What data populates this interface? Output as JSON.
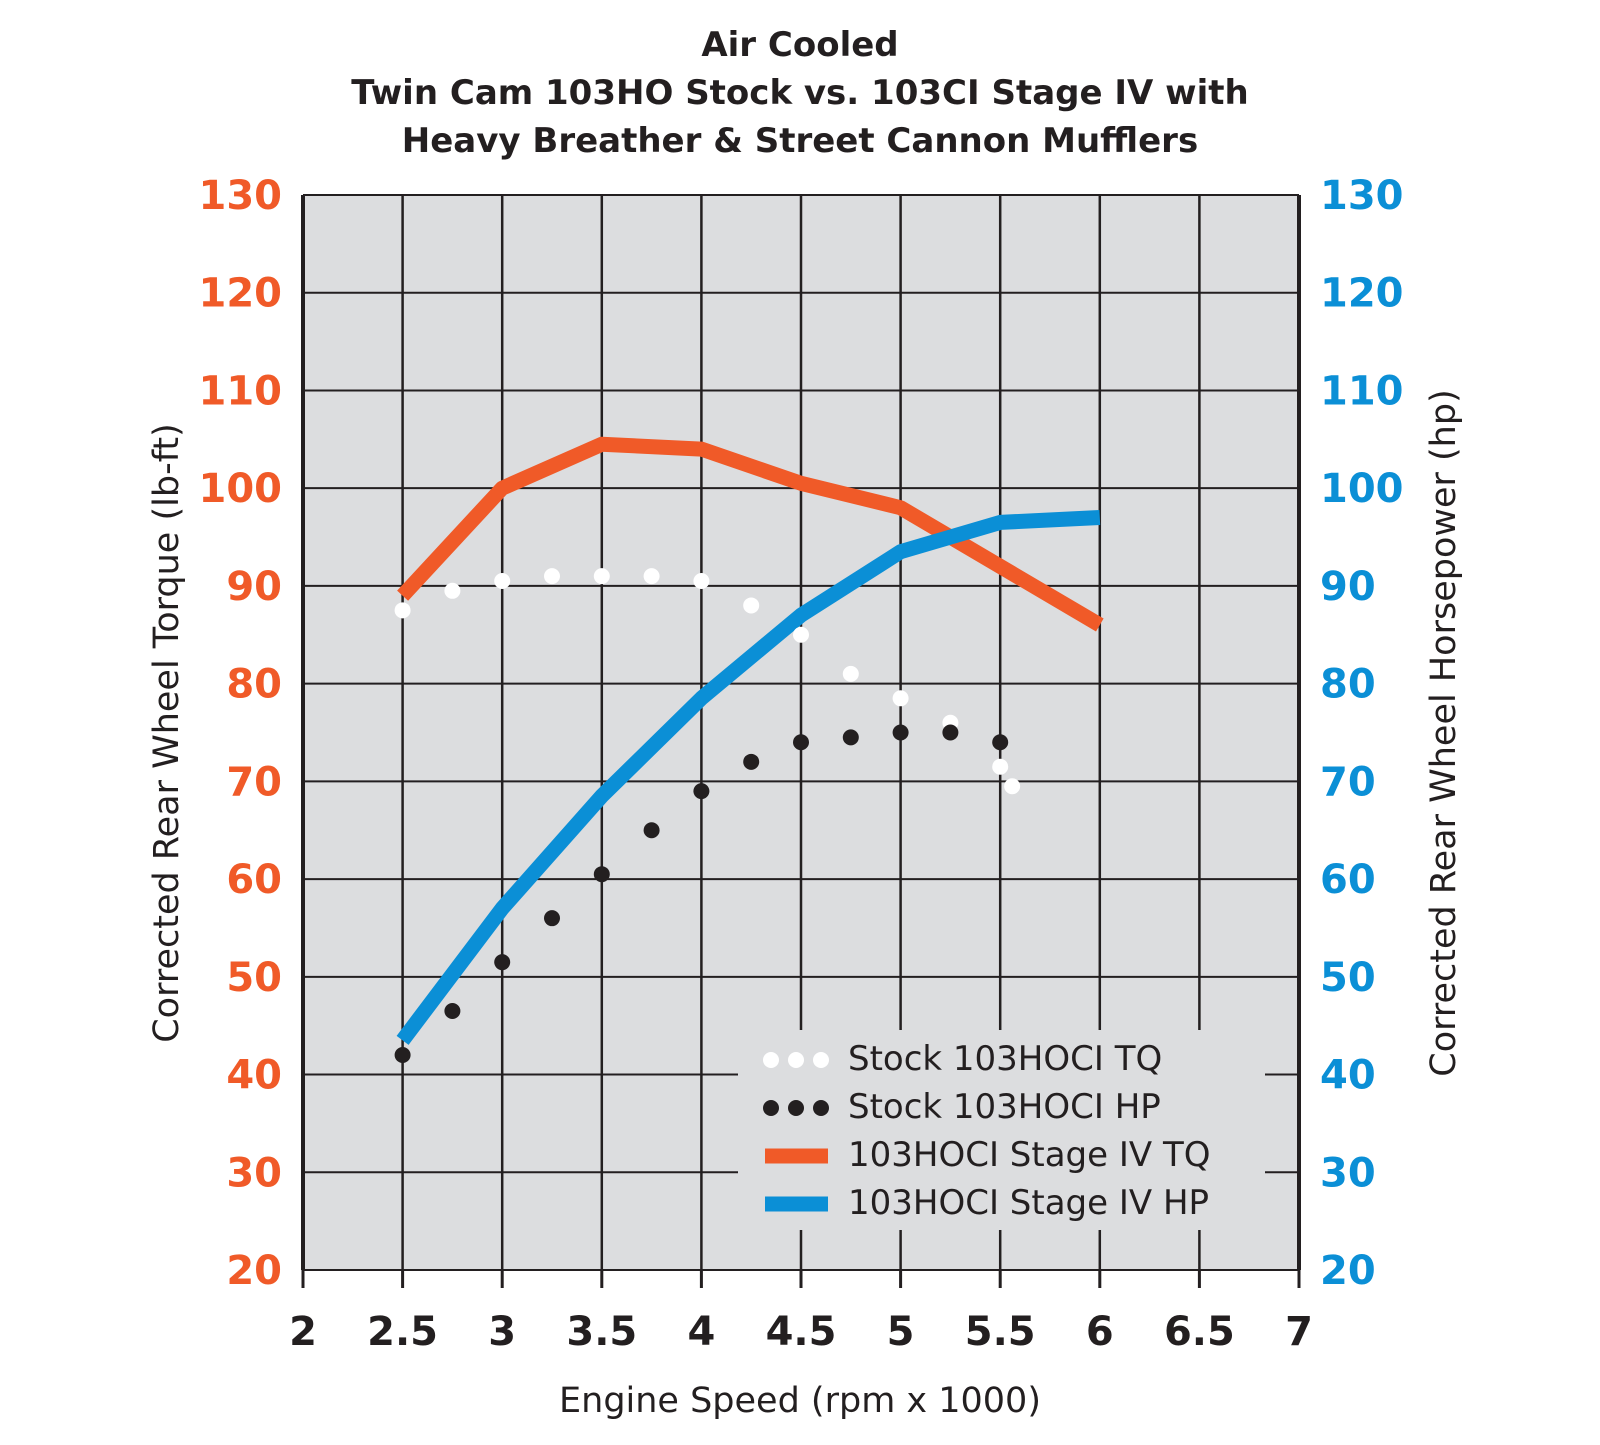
{
  "chart_data": {
    "type": "line",
    "title_lines": [
      "Air Cooled",
      "Twin Cam 103HO Stock vs. 103CI Stage IV with",
      "Heavy Breather & Street Cannon Mufflers"
    ],
    "xlabel": "Engine Speed (rpm x 1000)",
    "ylabel_left": "Corrected Rear Wheel Torque (lb-ft)",
    "ylabel_right": "Corrected Rear Wheel Horsepower (hp)",
    "xlim": [
      2,
      7
    ],
    "ylim": [
      20,
      130
    ],
    "x_ticks": [
      "2",
      "2.5",
      "3",
      "3.5",
      "4",
      "4.5",
      "5",
      "5.5",
      "6",
      "6.5",
      "7"
    ],
    "x_tick_values": [
      2,
      2.5,
      3,
      3.5,
      4,
      4.5,
      5,
      5.5,
      6,
      6.5,
      7
    ],
    "y_ticks_left": [
      "20",
      "30",
      "40",
      "50",
      "60",
      "70",
      "80",
      "90",
      "100",
      "110",
      "120",
      "130"
    ],
    "y_ticks_right": [
      "20",
      "30",
      "40",
      "50",
      "60",
      "70",
      "80",
      "90",
      "100",
      "110",
      "120",
      "130"
    ],
    "y_tick_values": [
      20,
      30,
      40,
      50,
      60,
      70,
      80,
      90,
      100,
      110,
      120,
      130
    ],
    "grid": true,
    "legend_position": "bottom-right",
    "colors": {
      "torque_axis": "#f05a28",
      "hp_axis": "#0b8fd6",
      "plot_bg": "#dcdddf",
      "grid": "#231f20",
      "stock_tq": "#ffffff",
      "stock_hp": "#231f20",
      "stage_tq": "#f05a28",
      "stage_hp": "#0b8fd6"
    },
    "series": [
      {
        "name": "Stock 103HOCI TQ",
        "style": "dotted",
        "color": "#ffffff",
        "x": [
          2.5,
          2.75,
          3.0,
          3.25,
          3.5,
          3.75,
          4.0,
          4.25,
          4.5,
          4.75,
          5.0,
          5.25,
          5.5,
          5.56
        ],
        "y": [
          87.5,
          89.5,
          90.5,
          91.0,
          91.0,
          91.0,
          90.5,
          88.0,
          85.0,
          81.0,
          78.5,
          76.0,
          71.5,
          69.5
        ]
      },
      {
        "name": "Stock 103HOCI HP",
        "style": "dotted",
        "color": "#231f20",
        "x": [
          2.5,
          2.75,
          3.0,
          3.25,
          3.5,
          3.75,
          4.0,
          4.25,
          4.5,
          4.75,
          5.0,
          5.25,
          5.5
        ],
        "y": [
          42.0,
          46.5,
          51.5,
          56.0,
          60.5,
          65.0,
          69.0,
          72.0,
          74.0,
          74.5,
          75.0,
          75.0,
          74.0
        ]
      },
      {
        "name": "103HOCI Stage IV TQ",
        "style": "solid",
        "color": "#f05a28",
        "x": [
          2.5,
          3.0,
          3.5,
          4.0,
          4.5,
          5.0,
          5.5,
          6.0
        ],
        "y": [
          89.0,
          100.0,
          104.5,
          104.0,
          100.5,
          98.0,
          92.0,
          86.0
        ]
      },
      {
        "name": "103HOCI Stage IV HP",
        "style": "solid",
        "color": "#0b8fd6",
        "x": [
          2.5,
          3.0,
          3.5,
          4.0,
          4.5,
          5.0,
          5.5,
          6.0
        ],
        "y": [
          43.5,
          57.0,
          68.5,
          78.5,
          87.0,
          93.5,
          96.5,
          97.0
        ]
      }
    ]
  }
}
